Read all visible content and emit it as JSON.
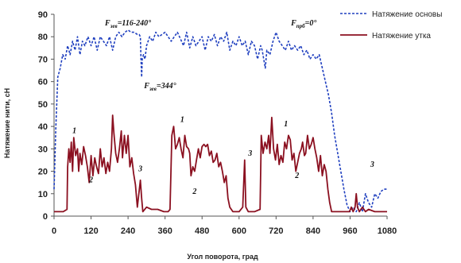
{
  "chart_data": {
    "type": "line",
    "title": "",
    "xlabel": "Угол поворота, град",
    "ylabel": "Натяжение нити, сН",
    "xlim": [
      0,
      1080
    ],
    "ylim": [
      0,
      90
    ],
    "x_ticks": [
      0,
      120,
      240,
      360,
      480,
      600,
      720,
      840,
      960,
      1080
    ],
    "y_ticks": [
      0,
      10,
      20,
      30,
      40,
      50,
      60,
      70,
      80,
      90
    ],
    "grid": false,
    "legend_position": "top-right",
    "series": [
      {
        "name": "Натяжение основы",
        "color": "#1f3fbf",
        "style": "dashed",
        "points": [
          [
            0,
            12
          ],
          [
            6,
            40
          ],
          [
            12,
            62
          ],
          [
            20,
            66
          ],
          [
            28,
            72
          ],
          [
            36,
            70
          ],
          [
            44,
            76
          ],
          [
            52,
            72
          ],
          [
            60,
            78
          ],
          [
            68,
            74
          ],
          [
            76,
            80
          ],
          [
            84,
            72
          ],
          [
            92,
            78
          ],
          [
            100,
            76
          ],
          [
            110,
            80
          ],
          [
            120,
            76
          ],
          [
            130,
            80
          ],
          [
            140,
            74
          ],
          [
            150,
            80
          ],
          [
            160,
            78
          ],
          [
            170,
            76
          ],
          [
            180,
            80
          ],
          [
            190,
            74
          ],
          [
            200,
            80
          ],
          [
            210,
            82
          ],
          [
            220,
            80
          ],
          [
            230,
            82
          ],
          [
            240,
            83
          ],
          [
            250,
            82
          ],
          [
            260,
            82
          ],
          [
            270,
            81
          ],
          [
            276,
            81
          ],
          [
            280,
            80
          ],
          [
            282,
            70
          ],
          [
            284,
            62
          ],
          [
            286,
            70
          ],
          [
            290,
            72
          ],
          [
            295,
            70
          ],
          [
            300,
            76
          ],
          [
            310,
            80
          ],
          [
            320,
            78
          ],
          [
            330,
            82
          ],
          [
            340,
            80
          ],
          [
            350,
            81
          ],
          [
            360,
            82
          ],
          [
            370,
            80
          ],
          [
            380,
            78
          ],
          [
            390,
            80
          ],
          [
            400,
            82
          ],
          [
            410,
            79
          ],
          [
            420,
            76
          ],
          [
            430,
            82
          ],
          [
            440,
            75
          ],
          [
            450,
            80
          ],
          [
            460,
            76
          ],
          [
            470,
            78
          ],
          [
            480,
            80
          ],
          [
            490,
            74
          ],
          [
            500,
            80
          ],
          [
            510,
            78
          ],
          [
            520,
            81
          ],
          [
            530,
            76
          ],
          [
            540,
            80
          ],
          [
            550,
            78
          ],
          [
            560,
            82
          ],
          [
            570,
            74
          ],
          [
            580,
            78
          ],
          [
            590,
            76
          ],
          [
            600,
            80
          ],
          [
            610,
            76
          ],
          [
            620,
            78
          ],
          [
            630,
            72
          ],
          [
            640,
            78
          ],
          [
            650,
            76
          ],
          [
            660,
            70
          ],
          [
            670,
            76
          ],
          [
            675,
            74
          ],
          [
            680,
            70
          ],
          [
            685,
            66
          ],
          [
            690,
            74
          ],
          [
            700,
            72
          ],
          [
            710,
            78
          ],
          [
            720,
            82
          ],
          [
            730,
            78
          ],
          [
            740,
            76
          ],
          [
            750,
            74
          ],
          [
            760,
            78
          ],
          [
            770,
            74
          ],
          [
            780,
            76
          ],
          [
            790,
            74
          ],
          [
            800,
            76
          ],
          [
            810,
            72
          ],
          [
            820,
            74
          ],
          [
            830,
            70
          ],
          [
            840,
            72
          ],
          [
            850,
            70
          ],
          [
            860,
            72
          ],
          [
            870,
            66
          ],
          [
            880,
            60
          ],
          [
            890,
            54
          ],
          [
            900,
            46
          ],
          [
            910,
            36
          ],
          [
            920,
            28
          ],
          [
            930,
            20
          ],
          [
            940,
            12
          ],
          [
            950,
            5
          ],
          [
            960,
            2
          ],
          [
            970,
            4
          ],
          [
            980,
            2
          ],
          [
            990,
            6
          ],
          [
            1000,
            2
          ],
          [
            1010,
            10
          ],
          [
            1020,
            6
          ],
          [
            1030,
            4
          ],
          [
            1040,
            10
          ],
          [
            1050,
            8
          ],
          [
            1060,
            11
          ],
          [
            1070,
            12
          ],
          [
            1080,
            12
          ]
        ]
      },
      {
        "name": "Натяжение утка",
        "color": "#8b1020",
        "style": "solid",
        "points": [
          [
            0,
            2
          ],
          [
            30,
            2
          ],
          [
            42,
            3
          ],
          [
            44,
            22
          ],
          [
            48,
            30
          ],
          [
            52,
            24
          ],
          [
            56,
            33
          ],
          [
            60,
            20
          ],
          [
            64,
            35
          ],
          [
            70,
            27
          ],
          [
            76,
            30
          ],
          [
            80,
            20
          ],
          [
            84,
            28
          ],
          [
            90,
            23
          ],
          [
            96,
            31
          ],
          [
            102,
            27
          ],
          [
            108,
            22
          ],
          [
            114,
            15
          ],
          [
            120,
            27
          ],
          [
            126,
            18
          ],
          [
            132,
            26
          ],
          [
            138,
            22
          ],
          [
            144,
            19
          ],
          [
            150,
            30
          ],
          [
            156,
            22
          ],
          [
            162,
            26
          ],
          [
            168,
            19
          ],
          [
            174,
            24
          ],
          [
            180,
            20
          ],
          [
            186,
            30
          ],
          [
            190,
            45
          ],
          [
            194,
            37
          ],
          [
            200,
            28
          ],
          [
            206,
            24
          ],
          [
            212,
            30
          ],
          [
            218,
            38
          ],
          [
            222,
            26
          ],
          [
            228,
            36
          ],
          [
            234,
            28
          ],
          [
            240,
            36
          ],
          [
            246,
            22
          ],
          [
            252,
            26
          ],
          [
            258,
            19
          ],
          [
            264,
            14
          ],
          [
            270,
            4
          ],
          [
            280,
            16
          ],
          [
            284,
            8
          ],
          [
            288,
            2
          ],
          [
            300,
            4
          ],
          [
            316,
            3
          ],
          [
            336,
            3
          ],
          [
            356,
            2
          ],
          [
            370,
            2
          ],
          [
            376,
            3
          ],
          [
            382,
            36
          ],
          [
            388,
            40
          ],
          [
            394,
            30
          ],
          [
            400,
            32
          ],
          [
            406,
            35
          ],
          [
            412,
            30
          ],
          [
            418,
            26
          ],
          [
            424,
            36
          ],
          [
            430,
            31
          ],
          [
            436,
            30
          ],
          [
            440,
            28
          ],
          [
            444,
            18
          ],
          [
            450,
            22
          ],
          [
            456,
            20
          ],
          [
            462,
            25
          ],
          [
            468,
            30
          ],
          [
            474,
            26
          ],
          [
            480,
            31
          ],
          [
            486,
            32
          ],
          [
            492,
            31
          ],
          [
            498,
            32
          ],
          [
            504,
            27
          ],
          [
            510,
            29
          ],
          [
            516,
            24
          ],
          [
            522,
            25
          ],
          [
            528,
            28
          ],
          [
            534,
            22
          ],
          [
            540,
            24
          ],
          [
            546,
            20
          ],
          [
            552,
            15
          ],
          [
            558,
            18
          ],
          [
            564,
            8
          ],
          [
            570,
            4
          ],
          [
            580,
            2
          ],
          [
            600,
            2
          ],
          [
            612,
            4
          ],
          [
            618,
            25
          ],
          [
            622,
            4
          ],
          [
            630,
            2
          ],
          [
            650,
            2
          ],
          [
            668,
            3
          ],
          [
            672,
            36
          ],
          [
            678,
            28
          ],
          [
            684,
            33
          ],
          [
            690,
            30
          ],
          [
            696,
            36
          ],
          [
            700,
            28
          ],
          [
            706,
            44
          ],
          [
            712,
            30
          ],
          [
            718,
            25
          ],
          [
            724,
            32
          ],
          [
            730,
            23
          ],
          [
            736,
            27
          ],
          [
            742,
            24
          ],
          [
            748,
            33
          ],
          [
            754,
            30
          ],
          [
            760,
            36
          ],
          [
            766,
            34
          ],
          [
            772,
            25
          ],
          [
            778,
            28
          ],
          [
            784,
            20
          ],
          [
            790,
            24
          ],
          [
            796,
            28
          ],
          [
            802,
            30
          ],
          [
            806,
            33
          ],
          [
            812,
            27
          ],
          [
            816,
            28
          ],
          [
            822,
            36
          ],
          [
            828,
            30
          ],
          [
            834,
            32
          ],
          [
            840,
            35
          ],
          [
            846,
            30
          ],
          [
            852,
            26
          ],
          [
            858,
            20
          ],
          [
            864,
            27
          ],
          [
            870,
            18
          ],
          [
            876,
            23
          ],
          [
            882,
            20
          ],
          [
            888,
            12
          ],
          [
            894,
            6
          ],
          [
            900,
            2
          ],
          [
            920,
            2
          ],
          [
            940,
            2
          ],
          [
            958,
            2
          ],
          [
            964,
            4
          ],
          [
            970,
            2
          ],
          [
            976,
            4
          ],
          [
            980,
            10
          ],
          [
            984,
            4
          ],
          [
            990,
            2
          ],
          [
            1000,
            4
          ],
          [
            1010,
            2
          ],
          [
            1020,
            3
          ],
          [
            1040,
            2
          ],
          [
            1060,
            2
          ],
          [
            1080,
            2
          ]
        ]
      }
    ],
    "annotations": [
      {
        "label": "F",
        "sub": "зев",
        "rest": "=116-240°",
        "x": 240,
        "y": 85
      },
      {
        "label": "F",
        "sub": "зев",
        "rest": "=344°",
        "x": 344,
        "y": 57
      },
      {
        "label": "F",
        "sub": "прб",
        "rest": "=0°",
        "x": 810,
        "y": 85
      },
      {
        "label": "1",
        "x": 66,
        "y": 37
      },
      {
        "label": "2",
        "x": 120,
        "y": 15
      },
      {
        "label": "3",
        "x": 280,
        "y": 20
      },
      {
        "label": "1",
        "x": 416,
        "y": 42
      },
      {
        "label": "2",
        "x": 456,
        "y": 10
      },
      {
        "label": "3",
        "x": 636,
        "y": 27
      },
      {
        "label": "1",
        "x": 752,
        "y": 40
      },
      {
        "label": "2",
        "x": 788,
        "y": 17
      },
      {
        "label": "3",
        "x": 1032,
        "y": 22
      }
    ]
  }
}
